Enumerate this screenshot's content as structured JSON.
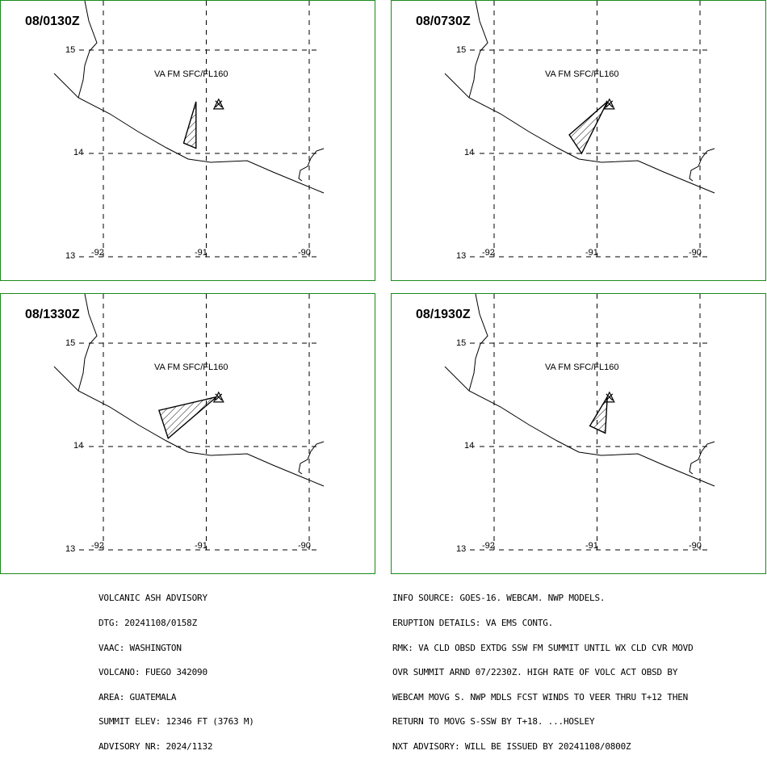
{
  "panels": [
    {
      "time": "08/0130Z",
      "label": "VA FM SFC/FL160",
      "ash_cloud": [
        [
          -91.1,
          14.5
        ],
        [
          -91.1,
          14.05
        ],
        [
          -91.22,
          14.1
        ]
      ]
    },
    {
      "time": "08/0730Z",
      "label": "VA FM SFC/FL160",
      "ash_cloud": [
        [
          -90.9,
          14.5
        ],
        [
          -91.27,
          14.18
        ],
        [
          -91.15,
          14.0
        ]
      ]
    },
    {
      "time": "08/1330Z",
      "label": "VA FM SFC/FL160",
      "ash_cloud": [
        [
          -90.9,
          14.48
        ],
        [
          -91.46,
          14.35
        ],
        [
          -91.37,
          14.08
        ]
      ]
    },
    {
      "time": "08/1930Z",
      "label": "VA FM SFC/FL160",
      "ash_cloud": [
        [
          -90.9,
          14.48
        ],
        [
          -91.07,
          14.2
        ],
        [
          -90.92,
          14.13
        ]
      ]
    }
  ],
  "axes": {
    "lat_labels": [
      "15",
      "14",
      "13"
    ],
    "lon_labels": [
      "-92",
      "-91",
      "-90"
    ],
    "lat_values": [
      15,
      14,
      13
    ],
    "lon_values": [
      -92,
      -91,
      -90
    ],
    "volcano": {
      "lon": -90.88,
      "lat": 14.47
    }
  },
  "colors": {
    "panel_border": "#1a8a1a",
    "line": "#000000"
  },
  "advisory_left": [
    "VOLCANIC ASH ADVISORY",
    "DTG: 20241108/0158Z",
    "VAAC: WASHINGTON",
    "VOLCANO: FUEGO 342090",
    "AREA: GUATEMALA",
    "SUMMIT ELEV: 12346 FT (3763 M)",
    "ADVISORY NR: 2024/1132"
  ],
  "advisory_right": [
    "INFO SOURCE: GOES-16. WEBCAM. NWP MODELS.",
    "ERUPTION DETAILS: VA EMS CONTG.",
    "RMK: VA CLD OBSD EXTDG SSW FM SUMMIT UNTIL WX CLD CVR MOVD",
    "OVR SUMMIT ARND 07/2230Z. HIGH RATE OF VOLC ACT OBSD BY",
    "WEBCAM MOVG S. NWP MDLS FCST WINDS TO VEER THRU T+12 THEN",
    "RETURN TO MOVG S-SSW BY T+18. ...HOSLEY",
    "NXT ADVISORY: WILL BE ISSUED BY 20241108/0800Z"
  ]
}
